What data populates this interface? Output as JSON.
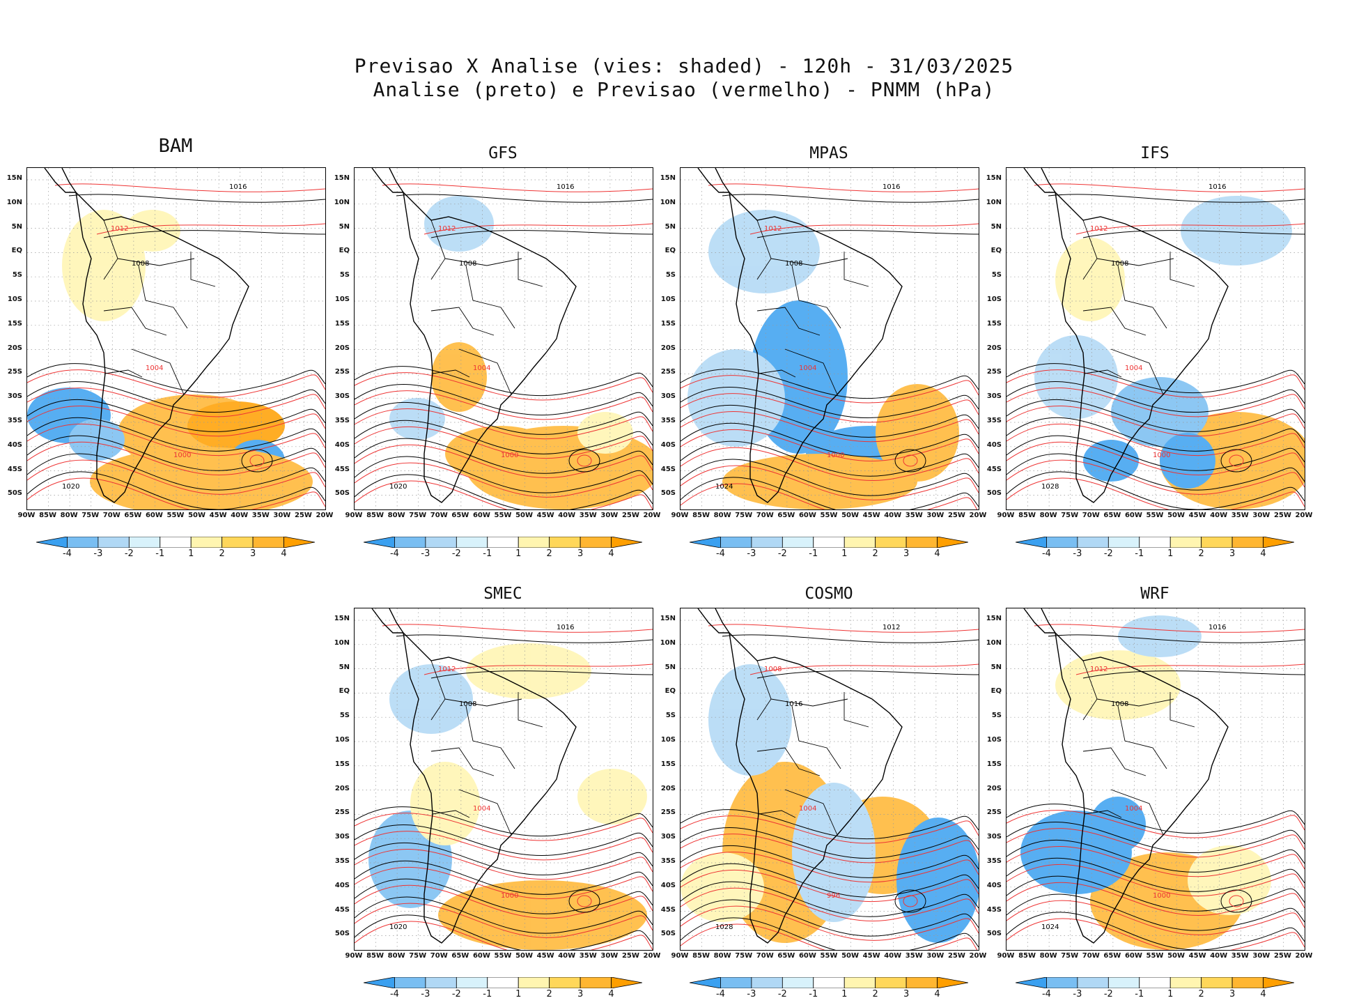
{
  "figure": {
    "title_line1": "Previsao X Analise (vies: shaded) - 120h - 31/03/2025",
    "title_line2": "Analise (preto) e Previsao (vermelho) - PNMM (hPa)"
  },
  "lat_labels": [
    "15N",
    "10N",
    "5N",
    "EQ",
    "5S",
    "10S",
    "15S",
    "20S",
    "25S",
    "30S",
    "35S",
    "40S",
    "45S",
    "50S"
  ],
  "lon_labels": [
    "90W",
    "85W",
    "80W",
    "75W",
    "70W",
    "65W",
    "60W",
    "55W",
    "50W",
    "45W",
    "40W",
    "35W",
    "30W",
    "25W",
    "20W"
  ],
  "colorbar": {
    "labels": [
      "-4",
      "-3",
      "-2",
      "-1",
      "1",
      "2",
      "3",
      "4"
    ],
    "colors": [
      "#3aa0f0",
      "#79bef2",
      "#b0d8f5",
      "#d8f2fb",
      "#ffffff",
      "#fff5b0",
      "#ffd75a",
      "#ffb631",
      "#ff9f00"
    ]
  },
  "panels": [
    {
      "name": "BAM",
      "contours": [
        {
          "t": "1016"
        },
        {
          "t": "1012"
        },
        {
          "t": "1008"
        },
        {
          "t": "1004"
        },
        {
          "t": "1020"
        },
        {
          "t": "1000"
        }
      ]
    },
    {
      "name": "GFS",
      "contours": [
        {
          "t": "1016"
        },
        {
          "t": "1012"
        },
        {
          "t": "1008"
        },
        {
          "t": "1004"
        },
        {
          "t": "1020"
        },
        {
          "t": "1000"
        }
      ]
    },
    {
      "name": "MPAS",
      "contours": [
        {
          "t": "1016"
        },
        {
          "t": "1012"
        },
        {
          "t": "1008"
        },
        {
          "t": "1004"
        },
        {
          "t": "1024"
        },
        {
          "t": "1000"
        }
      ]
    },
    {
      "name": "IFS",
      "contours": [
        {
          "t": "1016"
        },
        {
          "t": "1012"
        },
        {
          "t": "1008"
        },
        {
          "t": "1004"
        },
        {
          "t": "1028"
        },
        {
          "t": "1000"
        }
      ]
    },
    {
      "name": "SMEC",
      "contours": [
        {
          "t": "1016"
        },
        {
          "t": "1012"
        },
        {
          "t": "1008"
        },
        {
          "t": "1004"
        },
        {
          "t": "1020"
        },
        {
          "t": "1000"
        }
      ]
    },
    {
      "name": "COSMO",
      "contours": [
        {
          "t": "1012"
        },
        {
          "t": "1008"
        },
        {
          "t": "1016"
        },
        {
          "t": "1004"
        },
        {
          "t": "1028"
        },
        {
          "t": "996"
        }
      ]
    },
    {
      "name": "WRF",
      "contours": [
        {
          "t": "1016"
        },
        {
          "t": "1012"
        },
        {
          "t": "1008"
        },
        {
          "t": "1004"
        },
        {
          "t": "1024"
        },
        {
          "t": "1000"
        }
      ]
    }
  ]
}
